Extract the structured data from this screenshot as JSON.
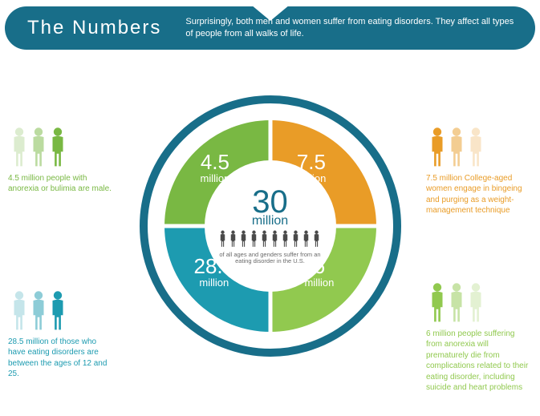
{
  "header": {
    "title": "The Numbers",
    "subtitle": "Surprisingly, both men and women suffer from eating disorders. They affect all types of people from all walks of life."
  },
  "chart": {
    "type": "donut",
    "outer_ring_color": "#186e89",
    "outer_ring_width": 10,
    "gap_color": "#ffffff",
    "background_color": "#ffffff",
    "center": {
      "value": "30",
      "unit": "million",
      "desc": "of all ages and genders suffer from an eating disorder in the U.S.",
      "value_color": "#186e89",
      "desc_color": "#6a6a6a",
      "people_icon_color": "#4a4a4a",
      "people_count": 10
    },
    "slices": [
      {
        "key": "tl",
        "value": "4.5",
        "unit": "million",
        "color": "#79b843",
        "label_color": "#ffffff"
      },
      {
        "key": "tr",
        "value": "7.5",
        "unit": "million",
        "color": "#e99c27",
        "label_color": "#ffffff"
      },
      {
        "key": "br",
        "value": "6",
        "unit": "million",
        "color": "#91c94f",
        "label_color": "#ffffff"
      },
      {
        "key": "bl",
        "value": "28.5",
        "unit": "million",
        "color": "#1d9bb0",
        "label_color": "#ffffff"
      }
    ]
  },
  "callouts": {
    "tl": {
      "text": "4.5 million people with anorexia or bulimia are male.",
      "icon_color": "#79b843",
      "fade_opacities": [
        0.25,
        0.5,
        1.0
      ],
      "text_color": "#79b843"
    },
    "tr": {
      "text": "7.5 million College-aged women engage in bingeing and purging as a weight-management technique",
      "icon_color": "#e99c27",
      "fade_opacities": [
        1.0,
        0.5,
        0.25
      ],
      "text_color": "#e99c27"
    },
    "bl": {
      "text": "28.5 million of those who have eating disorders are between the ages of 12 and 25.",
      "icon_color": "#1d9bb0",
      "fade_opacities": [
        0.25,
        0.5,
        1.0
      ],
      "text_color": "#1d9bb0"
    },
    "br": {
      "text": "6 million people suffering from anorexia will prematurely die from complications related to their eating disorder, including suicide and heart problems",
      "icon_color": "#91c94f",
      "fade_opacities": [
        1.0,
        0.5,
        0.25
      ],
      "text_color": "#91c94f"
    }
  },
  "typography": {
    "title_fontsize": 24,
    "subtitle_fontsize": 11,
    "center_value_fontsize": 40,
    "slice_value_fontsize": 26,
    "callout_fontsize": 10
  }
}
